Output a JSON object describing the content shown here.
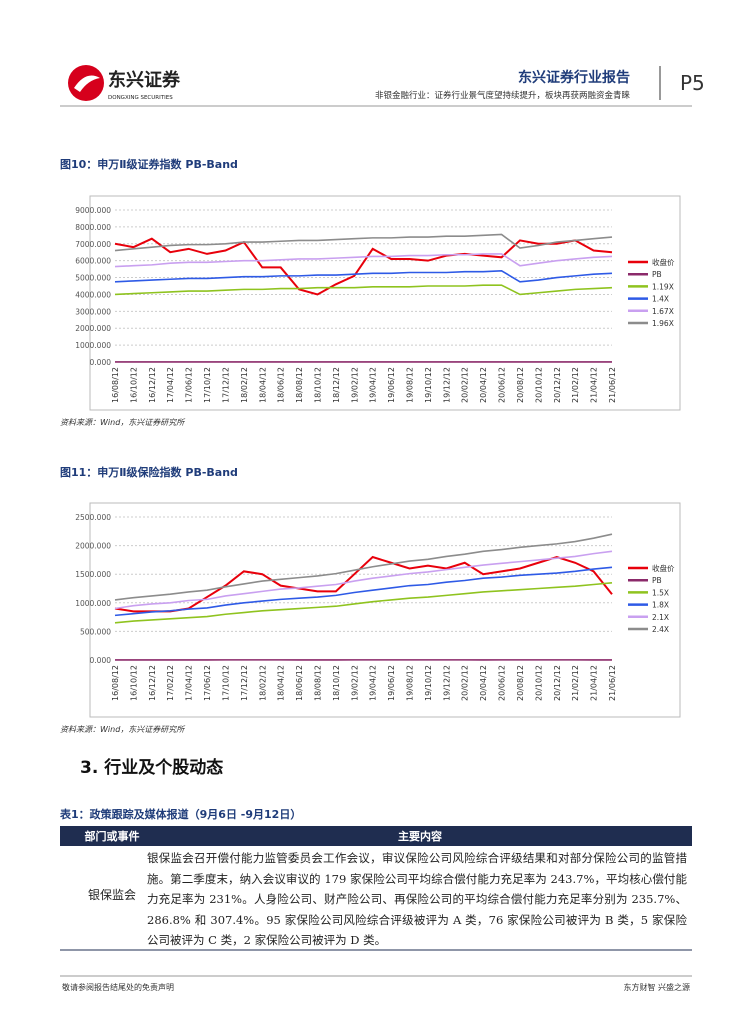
{
  "header": {
    "logo_cn": "东兴证券",
    "logo_en": "DONGXING SECURITIES",
    "report": "东兴证券行业报告",
    "subtitle": "非银金融行业：证券行业景气度望持续提升，板块再获两融资金青睐",
    "page": "P5"
  },
  "chart_data": [
    {
      "type": "line",
      "title": "图10：申万Ⅱ级证券指数 PB-Band",
      "categories": [
        "16/08/12",
        "16/10/12",
        "16/12/12",
        "17/04/12",
        "17/06/12",
        "17/10/12",
        "17/12/12",
        "18/02/12",
        "18/04/12",
        "18/06/12",
        "18/08/12",
        "18/10/12",
        "18/12/12",
        "19/02/12",
        "19/04/12",
        "19/06/12",
        "19/08/12",
        "19/10/12",
        "19/12/12",
        "20/02/12",
        "20/04/12",
        "20/06/12",
        "20/08/12",
        "20/10/12",
        "20/12/12",
        "21/02/12",
        "21/04/12",
        "21/06/12"
      ],
      "series": [
        {
          "name": "收盘价",
          "color": "#e8000b",
          "values": [
            7000,
            6800,
            7300,
            6500,
            6700,
            6400,
            6600,
            7100,
            5600,
            5600,
            4300,
            4000,
            4600,
            5100,
            6700,
            6100,
            6100,
            6000,
            6300,
            6400,
            6300,
            6200,
            7200,
            7000,
            7000,
            7200,
            6600,
            6500
          ]
        },
        {
          "name": "PB",
          "color": "#8b2a6a",
          "values": [
            1.6,
            1.5,
            1.6,
            1.5,
            1.5,
            1.4,
            1.4,
            1.5,
            1.3,
            1.3,
            1.1,
            1.0,
            1.1,
            1.2,
            1.5,
            1.4,
            1.4,
            1.3,
            1.4,
            1.4,
            1.4,
            1.3,
            1.6,
            1.5,
            1.5,
            1.6,
            1.5,
            1.5
          ]
        },
        {
          "name": "1.19X",
          "color": "#8fc31f",
          "values": [
            4000,
            4050,
            4100,
            4150,
            4200,
            4200,
            4250,
            4300,
            4300,
            4350,
            4350,
            4400,
            4400,
            4400,
            4450,
            4450,
            4450,
            4500,
            4500,
            4500,
            4550,
            4550,
            4000,
            4100,
            4200,
            4300,
            4350,
            4400
          ]
        },
        {
          "name": "1.4X",
          "color": "#2e5ae6",
          "values": [
            4750,
            4800,
            4850,
            4900,
            4950,
            4950,
            5000,
            5050,
            5050,
            5100,
            5100,
            5150,
            5150,
            5200,
            5250,
            5250,
            5300,
            5300,
            5300,
            5350,
            5350,
            5400,
            4750,
            4850,
            5000,
            5100,
            5200,
            5250
          ]
        },
        {
          "name": "1.67X",
          "color": "#c9a0f0",
          "values": [
            5650,
            5700,
            5750,
            5850,
            5900,
            5900,
            5950,
            6000,
            6000,
            6050,
            6100,
            6100,
            6150,
            6200,
            6250,
            6250,
            6300,
            6300,
            6350,
            6350,
            6400,
            6400,
            5700,
            5850,
            6000,
            6100,
            6200,
            6250
          ]
        },
        {
          "name": "1.96X",
          "color": "#8c8c8c",
          "values": [
            6600,
            6700,
            6800,
            6900,
            6950,
            6950,
            7000,
            7100,
            7100,
            7150,
            7200,
            7200,
            7250,
            7300,
            7350,
            7350,
            7400,
            7400,
            7450,
            7450,
            7500,
            7550,
            6750,
            6900,
            7100,
            7200,
            7300,
            7400
          ]
        }
      ],
      "ylim": [
        0,
        9000
      ],
      "yticks": [
        {
          "value": 0,
          "label": "0.000"
        },
        {
          "value": 1000,
          "label": "1000.000"
        },
        {
          "value": 2000,
          "label": "2000.000"
        },
        {
          "value": 3000,
          "label": "3000.000"
        },
        {
          "value": 4000,
          "label": "4000.000"
        },
        {
          "value": 5000,
          "label": "5000.000"
        },
        {
          "value": 6000,
          "label": "6000.000"
        },
        {
          "value": 7000,
          "label": "7000.000"
        },
        {
          "value": 8000,
          "label": "8000.000"
        },
        {
          "value": 9000,
          "label": "9000.000"
        }
      ],
      "grid": true,
      "legend": "right",
      "source": "资料来源：Wind，东兴证券研究所"
    },
    {
      "type": "line",
      "title": "图11：申万Ⅱ级保险指数 PB-Band",
      "categories": [
        "16/08/12",
        "16/10/12",
        "16/12/12",
        "17/02/12",
        "17/04/12",
        "17/06/12",
        "17/10/12",
        "17/12/12",
        "18/02/12",
        "18/04/12",
        "18/06/12",
        "18/08/12",
        "18/10/12",
        "19/02/12",
        "19/04/12",
        "19/06/12",
        "19/08/12",
        "19/10/12",
        "19/12/12",
        "20/02/12",
        "20/04/12",
        "20/06/12",
        "20/08/12",
        "20/10/12",
        "20/12/12",
        "21/02/12",
        "21/04/12",
        "21/06/12"
      ],
      "series": [
        {
          "name": "收盘价",
          "color": "#e8000b",
          "values": [
            900,
            850,
            850,
            850,
            900,
            1100,
            1300,
            1550,
            1500,
            1300,
            1250,
            1200,
            1200,
            1500,
            1800,
            1700,
            1600,
            1650,
            1600,
            1700,
            1500,
            1550,
            1600,
            1700,
            1800,
            1700,
            1550,
            1150
          ]
        },
        {
          "name": "PB",
          "color": "#8b2a6a",
          "values": [
            1.7,
            1.6,
            1.6,
            1.6,
            1.7,
            1.9,
            2.1,
            2.3,
            2.2,
            2.0,
            1.9,
            1.8,
            1.8,
            2.1,
            2.4,
            2.3,
            2.2,
            2.2,
            2.1,
            2.2,
            1.9,
            2.0,
            2.0,
            2.1,
            2.2,
            2.0,
            1.8,
            1.4
          ]
        },
        {
          "name": "1.5X",
          "color": "#8fc31f",
          "values": [
            650,
            680,
            700,
            720,
            740,
            760,
            800,
            830,
            860,
            880,
            900,
            920,
            940,
            980,
            1020,
            1050,
            1080,
            1100,
            1130,
            1160,
            1190,
            1210,
            1230,
            1250,
            1270,
            1290,
            1320,
            1350
          ]
        },
        {
          "name": "1.8X",
          "color": "#2e5ae6",
          "values": [
            780,
            810,
            840,
            860,
            890,
            910,
            960,
            1000,
            1030,
            1060,
            1080,
            1100,
            1130,
            1180,
            1220,
            1260,
            1300,
            1320,
            1360,
            1390,
            1430,
            1450,
            1480,
            1500,
            1520,
            1550,
            1590,
            1620
          ]
        },
        {
          "name": "2.1X",
          "color": "#c9a0f0",
          "values": [
            900,
            950,
            980,
            1000,
            1040,
            1060,
            1120,
            1160,
            1200,
            1240,
            1260,
            1290,
            1320,
            1380,
            1430,
            1470,
            1510,
            1540,
            1580,
            1620,
            1660,
            1690,
            1720,
            1750,
            1780,
            1810,
            1860,
            1900
          ]
        },
        {
          "name": "2.4X",
          "color": "#8c8c8c",
          "values": [
            1050,
            1090,
            1120,
            1150,
            1190,
            1220,
            1280,
            1330,
            1380,
            1410,
            1440,
            1470,
            1510,
            1570,
            1630,
            1680,
            1730,
            1760,
            1810,
            1850,
            1900,
            1930,
            1970,
            2000,
            2030,
            2070,
            2130,
            2200
          ]
        }
      ],
      "ylim": [
        0,
        2500
      ],
      "yticks": [
        {
          "value": 0,
          "label": "0.000"
        },
        {
          "value": 500,
          "label": "500.000"
        },
        {
          "value": 1000,
          "label": "1000.000"
        },
        {
          "value": 1500,
          "label": "1500.000"
        },
        {
          "value": 2000,
          "label": "2000.000"
        },
        {
          "value": 2500,
          "label": "2500.000"
        }
      ],
      "grid": true,
      "legend": "right",
      "source": "资料来源：Wind，东兴证券研究所"
    }
  ],
  "section": "3. 行业及个股动态",
  "table": {
    "title": "表1：政策跟踪及媒体报道（9月6日 -9月12日）",
    "header": [
      "部门或事件",
      "主要内容"
    ],
    "rows": [
      [
        "银保监会",
        "银保监会召开偿付能力监管委员会工作会议，审议保险公司风险综合评级结果和对部分保险公司的监管措施。第二季度末，纳入会议审议的 179 家保险公司平均综合偿付能力充足率为 243.7%，平均核心偿付能力充足率为 231%。人身险公司、财产险公司、再保险公司的平均综合偿付能力充足率分别为 235.7%、286.8% 和 307.4%。95 家保险公司风险综合评级被评为 A 类，76 家保险公司被评为 B 类，5 家保险公司被评为 C 类，2 家保险公司被评为 D 类。"
      ]
    ]
  },
  "footer": {
    "left": "敬请参阅报告结尾处的免责声明",
    "right": "东方财智 兴盛之源"
  }
}
